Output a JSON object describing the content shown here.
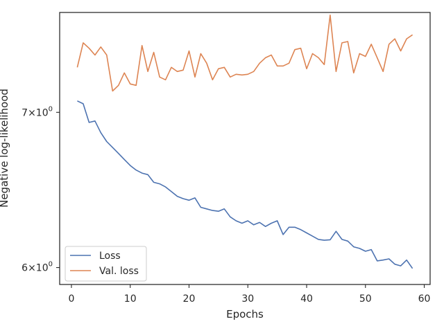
{
  "chart_data": {
    "type": "line",
    "xlabel": "Epochs",
    "ylabel": "Negative log-likelihood",
    "xlim": [
      -2,
      61
    ],
    "ylim": [
      5.9,
      7.73
    ],
    "yscale": "log",
    "grid": false,
    "legend_position": "lower-left",
    "x_ticks": [
      0,
      10,
      20,
      30,
      40,
      50,
      60
    ],
    "x_tick_labels": [
      "0",
      "10",
      "20",
      "30",
      "40",
      "50",
      "60"
    ],
    "y_ticks": [
      6,
      7
    ],
    "y_tick_labels": [
      {
        "base": "6",
        "times": "×",
        "exp": "10",
        "sup": "0"
      },
      {
        "base": "7",
        "times": "×",
        "exp": "10",
        "sup": "0"
      }
    ],
    "x": [
      1,
      2,
      3,
      4,
      5,
      6,
      7,
      8,
      9,
      10,
      11,
      12,
      13,
      14,
      15,
      16,
      17,
      18,
      19,
      20,
      21,
      22,
      23,
      24,
      25,
      26,
      27,
      28,
      29,
      30,
      31,
      32,
      33,
      34,
      35,
      36,
      37,
      38,
      39,
      40,
      41,
      42,
      43,
      44,
      45,
      46,
      47,
      48,
      49,
      50,
      51,
      52,
      53,
      54,
      55,
      56,
      57,
      58
    ],
    "series": [
      {
        "name": "Loss",
        "color": "#4c72b0",
        "values": [
          7.08,
          7.06,
          6.93,
          6.94,
          6.86,
          6.8,
          6.76,
          6.72,
          6.68,
          6.64,
          6.61,
          6.59,
          6.58,
          6.53,
          6.52,
          6.5,
          6.47,
          6.44,
          6.425,
          6.415,
          6.43,
          6.37,
          6.36,
          6.35,
          6.345,
          6.36,
          6.31,
          6.285,
          6.27,
          6.285,
          6.26,
          6.275,
          6.25,
          6.27,
          6.285,
          6.2,
          6.245,
          6.245,
          6.23,
          6.21,
          6.19,
          6.17,
          6.165,
          6.168,
          6.22,
          6.17,
          6.16,
          6.125,
          6.115,
          6.098,
          6.108,
          6.04,
          6.045,
          6.052,
          6.02,
          6.01,
          6.045,
          5.995
        ]
      },
      {
        "name": "Val. loss",
        "color": "#dd8452",
        "values": [
          7.32,
          7.5,
          7.46,
          7.41,
          7.47,
          7.41,
          7.15,
          7.19,
          7.28,
          7.2,
          7.19,
          7.48,
          7.29,
          7.43,
          7.25,
          7.23,
          7.32,
          7.29,
          7.3,
          7.44,
          7.25,
          7.42,
          7.35,
          7.23,
          7.31,
          7.32,
          7.25,
          7.27,
          7.265,
          7.27,
          7.29,
          7.35,
          7.39,
          7.41,
          7.33,
          7.33,
          7.35,
          7.45,
          7.46,
          7.31,
          7.42,
          7.39,
          7.34,
          7.71,
          7.29,
          7.5,
          7.51,
          7.28,
          7.42,
          7.4,
          7.49,
          7.39,
          7.29,
          7.49,
          7.53,
          7.44,
          7.53,
          7.56
        ]
      }
    ]
  }
}
